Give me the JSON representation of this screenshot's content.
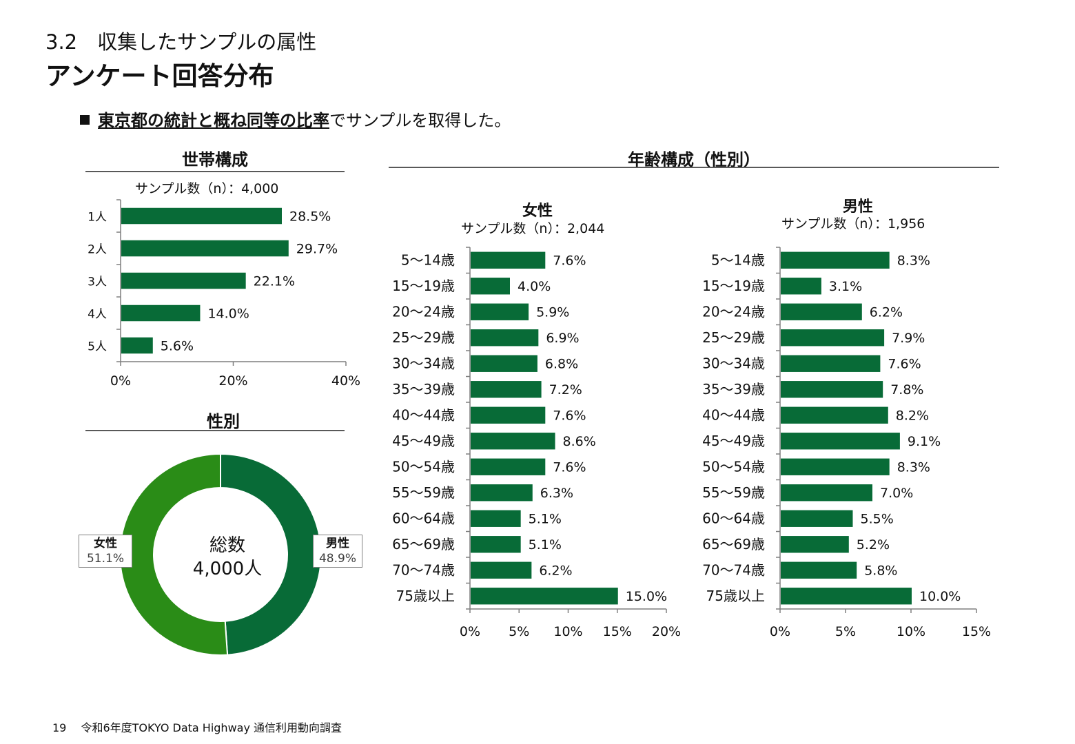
{
  "header": {
    "section_title": "3.2　収集したサンプルの属性",
    "main_title": "アンケート回答分布"
  },
  "summary": {
    "emphasis": "東京都の統計と概ね同等の比率",
    "rest": "でサンプルを取得した。"
  },
  "household": {
    "panel_title": "世帯構成",
    "sample_text": "サンプル数（n）：4,000"
  },
  "gender": {
    "panel_title": "性別",
    "center_label": "総数",
    "center_value": "4,000人"
  },
  "age": {
    "panel_title": "年齢構成（性別）",
    "female_title": "女性",
    "female_sample": "サンプル数（n）：2,044",
    "male_title": "男性",
    "male_sample": "サンプル数（n）：1,956"
  },
  "footer": {
    "page_number": "19",
    "document_title": "令和6年度TOKYO Data Highway 通信利用動向調査"
  },
  "colors": {
    "bar": "#086b37",
    "donut_male": "#086b37",
    "donut_female": "#2a8c17"
  },
  "chart_data": [
    {
      "id": "household",
      "type": "bar",
      "orientation": "horizontal",
      "categories": [
        "1人",
        "2人",
        "3人",
        "4人",
        "5人"
      ],
      "values": [
        28.5,
        29.7,
        22.1,
        14.0,
        5.6
      ],
      "value_labels": [
        "28.5%",
        "29.7%",
        "22.1%",
        "14.0%",
        "5.6%"
      ],
      "xlim": [
        0,
        40
      ],
      "xticks": [
        "0%",
        "20%",
        "40%"
      ],
      "grid": false
    },
    {
      "id": "gender",
      "type": "pie",
      "donut": true,
      "categories": [
        "男性",
        "女性"
      ],
      "values": [
        48.9,
        51.1
      ],
      "value_labels": [
        "48.9%",
        "51.1%"
      ]
    },
    {
      "id": "age_female",
      "type": "bar",
      "orientation": "horizontal",
      "title": "女性",
      "categories": [
        "5～14歳",
        "15～19歳",
        "20～24歳",
        "25～29歳",
        "30～34歳",
        "35～39歳",
        "40～44歳",
        "45～49歳",
        "50～54歳",
        "55～59歳",
        "60～64歳",
        "65～69歳",
        "70～74歳",
        "75歳以上"
      ],
      "values": [
        7.6,
        4.0,
        5.9,
        6.9,
        6.8,
        7.2,
        7.6,
        8.6,
        7.6,
        6.3,
        5.1,
        5.1,
        6.2,
        15.0
      ],
      "value_labels": [
        "7.6%",
        "4.0%",
        "5.9%",
        "6.9%",
        "6.8%",
        "7.2%",
        "7.6%",
        "8.6%",
        "7.6%",
        "6.3%",
        "5.1%",
        "5.1%",
        "6.2%",
        "15.0%"
      ],
      "xlim": [
        0,
        20
      ],
      "xticks": [
        "0%",
        "5%",
        "10%",
        "15%",
        "20%"
      ],
      "grid": false
    },
    {
      "id": "age_male",
      "type": "bar",
      "orientation": "horizontal",
      "title": "男性",
      "categories": [
        "5～14歳",
        "15～19歳",
        "20～24歳",
        "25～29歳",
        "30～34歳",
        "35～39歳",
        "40～44歳",
        "45～49歳",
        "50～54歳",
        "55～59歳",
        "60～64歳",
        "65～69歳",
        "70～74歳",
        "75歳以上"
      ],
      "values": [
        8.3,
        3.1,
        6.2,
        7.9,
        7.6,
        7.8,
        8.2,
        9.1,
        8.3,
        7.0,
        5.5,
        5.2,
        5.8,
        10.0
      ],
      "value_labels": [
        "8.3%",
        "3.1%",
        "6.2%",
        "7.9%",
        "7.6%",
        "7.8%",
        "8.2%",
        "9.1%",
        "8.3%",
        "7.0%",
        "5.5%",
        "5.2%",
        "5.8%",
        "10.0%"
      ],
      "xlim": [
        0,
        15
      ],
      "xticks": [
        "0%",
        "5%",
        "10%",
        "15%"
      ],
      "grid": false
    }
  ]
}
